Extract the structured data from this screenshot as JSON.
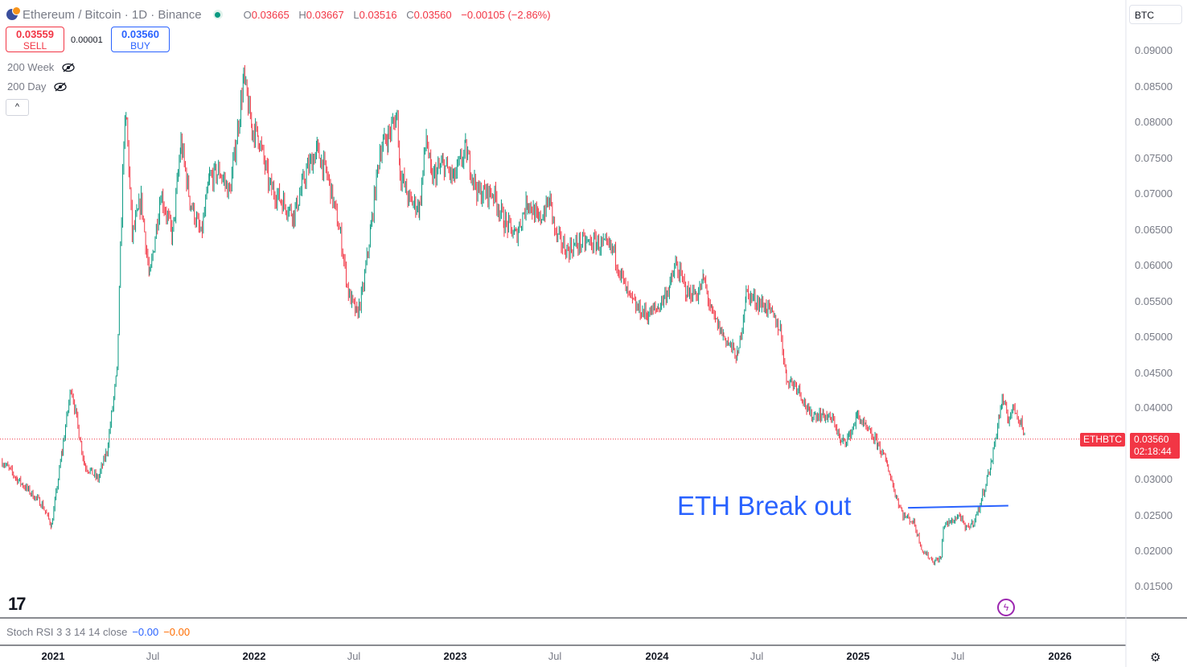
{
  "header": {
    "title": "Ethereum / Bitcoin · 1D · Binance",
    "ohlc": [
      {
        "key": "O",
        "value": "0.03665"
      },
      {
        "key": "H",
        "value": "0.03667"
      },
      {
        "key": "L",
        "value": "0.03516"
      },
      {
        "key": "C",
        "value": "0.03560"
      }
    ],
    "change": "−0.00105 (−2.86%)"
  },
  "trade": {
    "sell_price": "0.03559",
    "sell_label": "SELL",
    "spread": "0.00001",
    "buy_price": "0.03560",
    "buy_label": "BUY"
  },
  "indicators": [
    "200 Week",
    "200 Day"
  ],
  "currency": "BTC",
  "price_scale": [
    "0.09000",
    "0.08500",
    "0.08000",
    "0.07500",
    "0.07000",
    "0.06500",
    "0.06000",
    "0.05500",
    "0.05000",
    "0.04500",
    "0.04000",
    "0.03500",
    "0.03000",
    "0.02500",
    "0.02000",
    "0.01500"
  ],
  "last_price": {
    "symbol": "ETHBTC",
    "price": "0.03560",
    "countdown": "02:18:44"
  },
  "annotation": "ETH Break out",
  "stoch_rsi": {
    "label": "Stoch RSI 3 3 14 14 close",
    "k": "−0.00",
    "d": "−0.00"
  },
  "time_axis": [
    "2021",
    "Jul",
    "2022",
    "Jul",
    "2023",
    "Jul",
    "2024",
    "Jul",
    "2025",
    "Jul",
    "2026"
  ],
  "colors": {
    "up": "#089981",
    "down": "#f23645",
    "annotation": "#2962ff"
  },
  "icons": [
    "tradingview-logo-icon",
    "flash-icon",
    "settings-gear-icon",
    "eye-hidden-icon",
    "chevron-up-icon"
  ],
  "chart_data": {
    "type": "candlestick",
    "symbol": "ETHBTC",
    "interval": "1D",
    "ylim": [
      0.015,
      0.09
    ],
    "xlim": [
      "2020-10-01",
      "2026-03-31"
    ],
    "current_price": 0.0356,
    "path": [
      [
        "2020-10-05",
        0.0325
      ],
      [
        "2020-11-01",
        0.03
      ],
      [
        "2020-12-15",
        0.0265
      ],
      [
        "2021-01-01",
        0.0235
      ],
      [
        "2021-01-20",
        0.034
      ],
      [
        "2021-02-05",
        0.043
      ],
      [
        "2021-02-20",
        0.036
      ],
      [
        "2021-03-01",
        0.032
      ],
      [
        "2021-03-25",
        0.03
      ],
      [
        "2021-04-10",
        0.034
      ],
      [
        "2021-04-28",
        0.045
      ],
      [
        "2021-05-10",
        0.078
      ],
      [
        "2021-05-15",
        0.08
      ],
      [
        "2021-05-25",
        0.064
      ],
      [
        "2021-06-10",
        0.069
      ],
      [
        "2021-06-25",
        0.058
      ],
      [
        "2021-07-15",
        0.07
      ],
      [
        "2021-08-05",
        0.064
      ],
      [
        "2021-08-20",
        0.077
      ],
      [
        "2021-09-05",
        0.069
      ],
      [
        "2021-09-25",
        0.064
      ],
      [
        "2021-10-10",
        0.072
      ],
      [
        "2021-10-28",
        0.073
      ],
      [
        "2021-11-15",
        0.07
      ],
      [
        "2021-12-01",
        0.08
      ],
      [
        "2021-12-10",
        0.086
      ],
      [
        "2021-12-25",
        0.079
      ],
      [
        "2022-01-05",
        0.078
      ],
      [
        "2022-01-25",
        0.071
      ],
      [
        "2022-02-15",
        0.069
      ],
      [
        "2022-03-10",
        0.067
      ],
      [
        "2022-04-01",
        0.073
      ],
      [
        "2022-04-20",
        0.076
      ],
      [
        "2022-05-10",
        0.072
      ],
      [
        "2022-06-01",
        0.064
      ],
      [
        "2022-06-15",
        0.056
      ],
      [
        "2022-06-30",
        0.053
      ],
      [
        "2022-07-10",
        0.056
      ],
      [
        "2022-07-25",
        0.065
      ],
      [
        "2022-08-10",
        0.076
      ],
      [
        "2022-08-25",
        0.078
      ],
      [
        "2022-09-10",
        0.081
      ],
      [
        "2022-09-15",
        0.073
      ],
      [
        "2022-10-01",
        0.069
      ],
      [
        "2022-10-20",
        0.068
      ],
      [
        "2022-11-01",
        0.078
      ],
      [
        "2022-11-10",
        0.072
      ],
      [
        "2022-12-01",
        0.074
      ],
      [
        "2022-12-20",
        0.072
      ],
      [
        "2023-01-10",
        0.076
      ],
      [
        "2023-02-01",
        0.07
      ],
      [
        "2023-03-01",
        0.07
      ],
      [
        "2023-03-20",
        0.066
      ],
      [
        "2023-04-10",
        0.064
      ],
      [
        "2023-05-01",
        0.069
      ],
      [
        "2023-05-20",
        0.066
      ],
      [
        "2023-06-10",
        0.069
      ],
      [
        "2023-06-20",
        0.064
      ],
      [
        "2023-07-10",
        0.062
      ],
      [
        "2023-08-01",
        0.063
      ],
      [
        "2023-09-01",
        0.063
      ],
      [
        "2023-10-01",
        0.062
      ],
      [
        "2023-10-25",
        0.056
      ],
      [
        "2023-11-10",
        0.054
      ],
      [
        "2023-12-01",
        0.053
      ],
      [
        "2023-12-20",
        0.054
      ],
      [
        "2024-01-10",
        0.057
      ],
      [
        "2024-01-20",
        0.06
      ],
      [
        "2024-02-10",
        0.056
      ],
      [
        "2024-03-01",
        0.056
      ],
      [
        "2024-03-10",
        0.058
      ],
      [
        "2024-03-25",
        0.053
      ],
      [
        "2024-04-15",
        0.05
      ],
      [
        "2024-05-10",
        0.047
      ],
      [
        "2024-05-25",
        0.056
      ],
      [
        "2024-06-10",
        0.055
      ],
      [
        "2024-07-01",
        0.054
      ],
      [
        "2024-07-25",
        0.051
      ],
      [
        "2024-08-05",
        0.044
      ],
      [
        "2024-08-25",
        0.043
      ],
      [
        "2024-09-15",
        0.039
      ],
      [
        "2024-10-10",
        0.039
      ],
      [
        "2024-10-30",
        0.038
      ],
      [
        "2024-11-10",
        0.035
      ],
      [
        "2024-11-25",
        0.036
      ],
      [
        "2024-12-10",
        0.039
      ],
      [
        "2024-12-25",
        0.037
      ],
      [
        "2025-01-15",
        0.035
      ],
      [
        "2025-02-01",
        0.032
      ],
      [
        "2025-02-15",
        0.028
      ],
      [
        "2025-03-01",
        0.025
      ],
      [
        "2025-03-20",
        0.024
      ],
      [
        "2025-04-05",
        0.02
      ],
      [
        "2025-04-25",
        0.0185
      ],
      [
        "2025-05-08",
        0.019
      ],
      [
        "2025-05-12",
        0.0235
      ],
      [
        "2025-05-25",
        0.024
      ],
      [
        "2025-06-10",
        0.025
      ],
      [
        "2025-06-20",
        0.023
      ],
      [
        "2025-07-05",
        0.024
      ],
      [
        "2025-07-15",
        0.026
      ],
      [
        "2025-07-25",
        0.029
      ],
      [
        "2025-08-05",
        0.032
      ],
      [
        "2025-08-20",
        0.039
      ],
      [
        "2025-08-25",
        0.041
      ],
      [
        "2025-09-05",
        0.0385
      ],
      [
        "2025-09-15",
        0.04
      ],
      [
        "2025-09-28",
        0.038
      ],
      [
        "2025-10-05",
        0.0356
      ]
    ],
    "trendline": {
      "start": [
        "2025-03-10",
        0.026
      ],
      "end": [
        "2025-09-05",
        0.0263
      ]
    }
  }
}
